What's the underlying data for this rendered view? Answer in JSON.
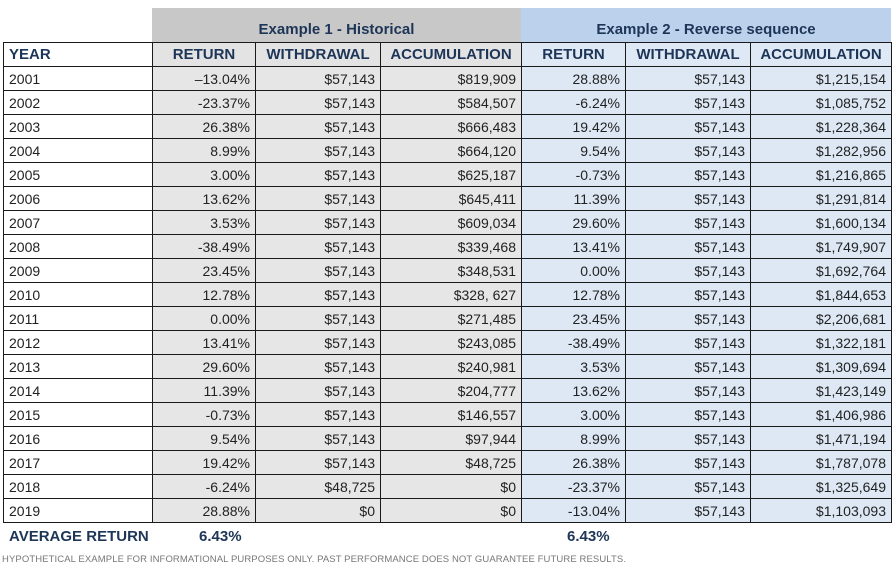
{
  "groups": {
    "example1": "Example 1 - Historical",
    "example2": "Example 2 - Reverse sequence"
  },
  "headers": {
    "year": "YEAR",
    "ex1": [
      "RETURN",
      "WITHDRAWAL",
      "ACCUMULATION"
    ],
    "ex2": [
      "RETURN",
      "WITHDRAWAL",
      "ACCUMULATION"
    ]
  },
  "rows": [
    {
      "year": "2001",
      "r1": "–13.04%",
      "w1": "$57,143",
      "a1": "$819,909",
      "r2": "28.88%",
      "w2": "$57,143",
      "a2": "$1,215,154"
    },
    {
      "year": "2002",
      "r1": "-23.37%",
      "w1": "$57,143",
      "a1": "$584,507",
      "r2": "-6.24%",
      "w2": "$57,143",
      "a2": "$1,085,752"
    },
    {
      "year": "2003",
      "r1": "26.38%",
      "w1": "$57,143",
      "a1": "$666,483",
      "r2": "19.42%",
      "w2": "$57,143",
      "a2": "$1,228,364"
    },
    {
      "year": "2004",
      "r1": "8.99%",
      "w1": "$57,143",
      "a1": "$664,120",
      "r2": "9.54%",
      "w2": "$57,143",
      "a2": "$1,282,956"
    },
    {
      "year": "2005",
      "r1": "3.00%",
      "w1": "$57,143",
      "a1": "$625,187",
      "r2": "-0.73%",
      "w2": "$57,143",
      "a2": "$1,216,865"
    },
    {
      "year": "2006",
      "r1": "13.62%",
      "w1": "$57,143",
      "a1": "$645,411",
      "r2": "11.39%",
      "w2": "$57,143",
      "a2": "$1,291,814"
    },
    {
      "year": "2007",
      "r1": "3.53%",
      "w1": "$57,143",
      "a1": "$609,034",
      "r2": "29.60%",
      "w2": "$57,143",
      "a2": "$1,600,134"
    },
    {
      "year": "2008",
      "r1": "-38.49%",
      "w1": "$57,143",
      "a1": "$339,468",
      "r2": "13.41%",
      "w2": "$57,143",
      "a2": "$1,749,907"
    },
    {
      "year": "2009",
      "r1": "23.45%",
      "w1": "$57,143",
      "a1": "$348,531",
      "r2": "0.00%",
      "w2": "$57,143",
      "a2": "$1,692,764"
    },
    {
      "year": "2010",
      "r1": "12.78%",
      "w1": "$57,143",
      "a1": "$328, 627",
      "r2": "12.78%",
      "w2": "$57,143",
      "a2": "$1,844,653"
    },
    {
      "year": "2011",
      "r1": "0.00%",
      "w1": "$57,143",
      "a1": "$271,485",
      "r2": "23.45%",
      "w2": "$57,143",
      "a2": "$2,206,681"
    },
    {
      "year": "2012",
      "r1": "13.41%",
      "w1": "$57,143",
      "a1": "$243,085",
      "r2": "-38.49%",
      "w2": "$57,143",
      "a2": "$1,322,181"
    },
    {
      "year": "2013",
      "r1": "29.60%",
      "w1": "$57,143",
      "a1": "$240,981",
      "r2": "3.53%",
      "w2": "$57,143",
      "a2": "$1,309,694"
    },
    {
      "year": "2014",
      "r1": "11.39%",
      "w1": "$57,143",
      "a1": "$204,777",
      "r2": "13.62%",
      "w2": "$57,143",
      "a2": "$1,423,149"
    },
    {
      "year": "2015",
      "r1": "-0.73%",
      "w1": "$57,143",
      "a1": "$146,557",
      "r2": "3.00%",
      "w2": "$57,143",
      "a2": "$1,406,986"
    },
    {
      "year": "2016",
      "r1": "9.54%",
      "w1": "$57,143",
      "a1": "$97,944",
      "r2": "8.99%",
      "w2": "$57,143",
      "a2": "$1,471,194"
    },
    {
      "year": "2017",
      "r1": "19.42%",
      "w1": "$57,143",
      "a1": "$48,725",
      "r2": "26.38%",
      "w2": "$57,143",
      "a2": "$1,787,078"
    },
    {
      "year": "2018",
      "r1": "-6.24%",
      "w1": "$48,725",
      "a1": "$0",
      "r2": "-23.37%",
      "w2": "$57,143",
      "a2": "$1,325,649",
      "red": true
    },
    {
      "year": "2019",
      "r1": "28.88%",
      "w1": "$0",
      "a1": "$0",
      "r2": "-13.04%",
      "w2": "$57,143",
      "a2": "$1,103,093",
      "red": true
    }
  ],
  "average": {
    "label": "AVERAGE RETURN",
    "ex1": "6.43%",
    "ex2": "6.43%"
  },
  "disclaimer": "HYPOTHETICAL EXAMPLE FOR INFORMATIONAL PURPOSES ONLY. PAST PERFORMANCE DOES NOT GUARANTEE FUTURE RESULTS.",
  "colors": {
    "header_text": "#1d3557",
    "ex1_fill": "#e6e6e6",
    "ex2_fill": "#dde8f4",
    "red": "#ee1111"
  }
}
